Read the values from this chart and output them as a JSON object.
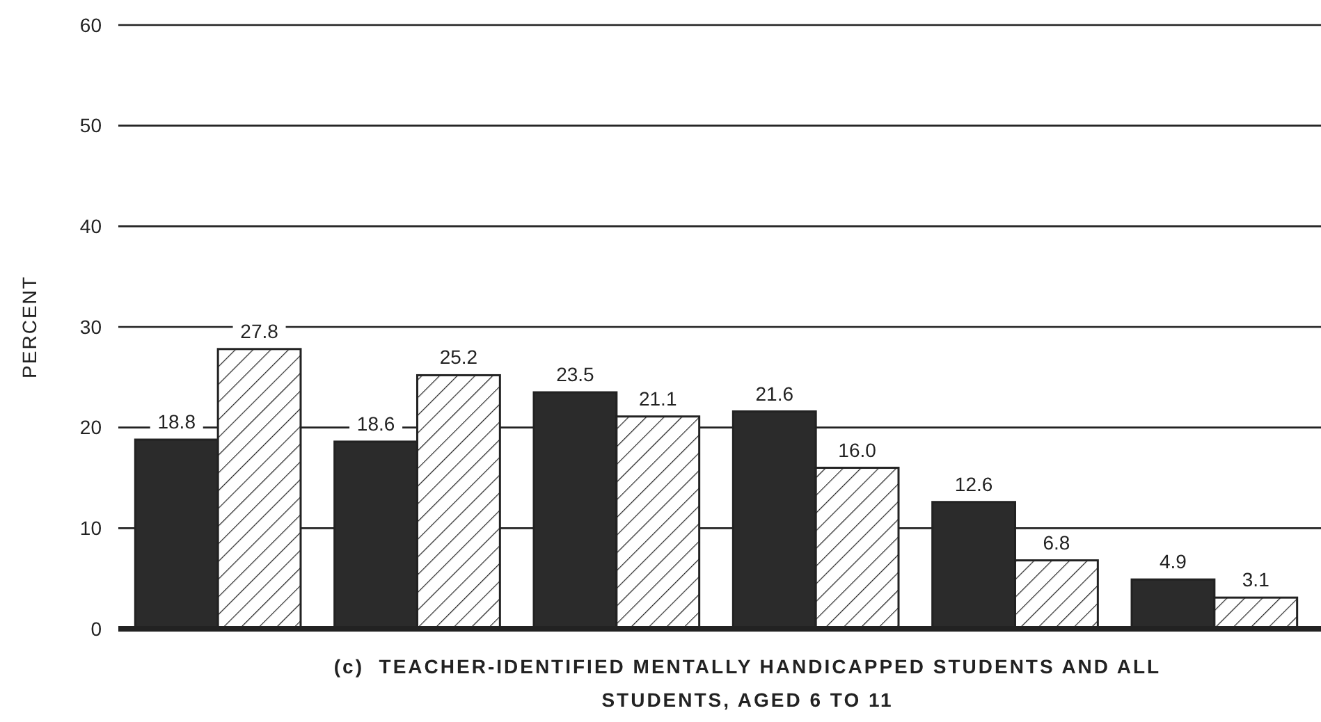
{
  "chart_data": {
    "type": "bar",
    "title": "(c)  TEACHER-IDENTIFIED MENTALLY HANDICAPPED STUDENTS AND ALL STUDENTS, AGED 6 TO 11",
    "ylabel": "PERCENT",
    "categories": [
      null,
      null,
      null,
      null,
      null,
      null
    ],
    "series": [
      {
        "color": "#2b2b2b",
        "values": [
          18.8,
          18.6,
          23.5,
          21.6,
          12.6,
          4.9
        ],
        "value_labels": [
          "18.8",
          "18.6",
          "23.5",
          "21.6",
          "12.6",
          "4.9"
        ]
      },
      {
        "color": "#ffffff",
        "values": [
          27.8,
          25.2,
          21.1,
          16.0,
          6.8,
          3.1
        ],
        "value_labels": [
          "27.8",
          "25.2",
          "21.1",
          "16.0",
          "6.8",
          "3.1"
        ]
      }
    ],
    "ylim": [
      0,
      60
    ],
    "yticks": [
      0,
      10,
      20,
      30,
      40,
      50,
      60
    ],
    "grid": "y"
  }
}
